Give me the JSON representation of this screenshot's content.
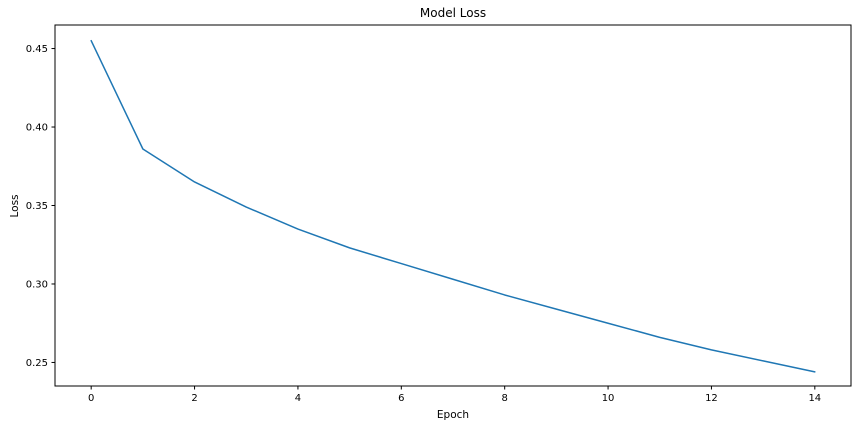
{
  "chart_data": {
    "type": "line",
    "title": "Model Loss",
    "xlabel": "Epoch",
    "ylabel": "Loss",
    "x": [
      0,
      1,
      2,
      3,
      4,
      5,
      6,
      7,
      8,
      9,
      10,
      11,
      12,
      13,
      14
    ],
    "series": [
      {
        "name": "loss",
        "color": "#1f77b4",
        "values": [
          0.455,
          0.386,
          0.365,
          0.349,
          0.335,
          0.323,
          0.313,
          0.303,
          0.293,
          0.284,
          0.275,
          0.266,
          0.258,
          0.251,
          0.244
        ]
      }
    ],
    "xlim": [
      -0.7,
      14.7
    ],
    "ylim": [
      0.235,
      0.465
    ],
    "x_ticks": [
      0,
      2,
      4,
      6,
      8,
      10,
      12,
      14
    ],
    "y_ticks": [
      0.25,
      0.3,
      0.35,
      0.4,
      0.45
    ],
    "grid": false,
    "legend": "none",
    "spine_color": "#000000",
    "background_color": "#ffffff"
  }
}
